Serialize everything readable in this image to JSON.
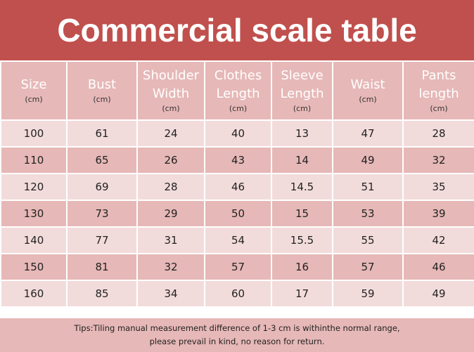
{
  "title": "Commercial scale table",
  "table": {
    "header": [
      {
        "lines": [
          "Size"
        ],
        "unit": "(cm)"
      },
      {
        "lines": [
          "Bust"
        ],
        "unit": "(cm)"
      },
      {
        "lines": [
          "Shoulder",
          "Width"
        ],
        "unit": "(cm)"
      },
      {
        "lines": [
          "Clothes",
          "Length"
        ],
        "unit": "(cm)"
      },
      {
        "lines": [
          "Sleeve",
          "Length"
        ],
        "unit": "(cm)"
      },
      {
        "lines": [
          "Waist"
        ],
        "unit": "(cm)"
      },
      {
        "lines": [
          "Pants",
          "length"
        ],
        "unit": "(cm)"
      }
    ],
    "rows": [
      [
        100,
        61,
        24,
        40,
        13,
        47,
        28
      ],
      [
        110,
        65,
        26,
        43,
        14,
        49,
        32
      ],
      [
        120,
        69,
        28,
        46,
        14.5,
        51,
        35
      ],
      [
        130,
        73,
        29,
        50,
        15,
        53,
        39
      ],
      [
        140,
        77,
        31,
        54,
        15.5,
        55,
        42
      ],
      [
        150,
        81,
        32,
        57,
        16,
        57,
        46
      ],
      [
        160,
        85,
        34,
        60,
        17,
        59,
        49
      ]
    ]
  },
  "tips": [
    "Tips:Tiling manual measurement difference of 1-3 cm is withinthe normal range,",
    "please prevail in kind, no reason for return."
  ]
}
